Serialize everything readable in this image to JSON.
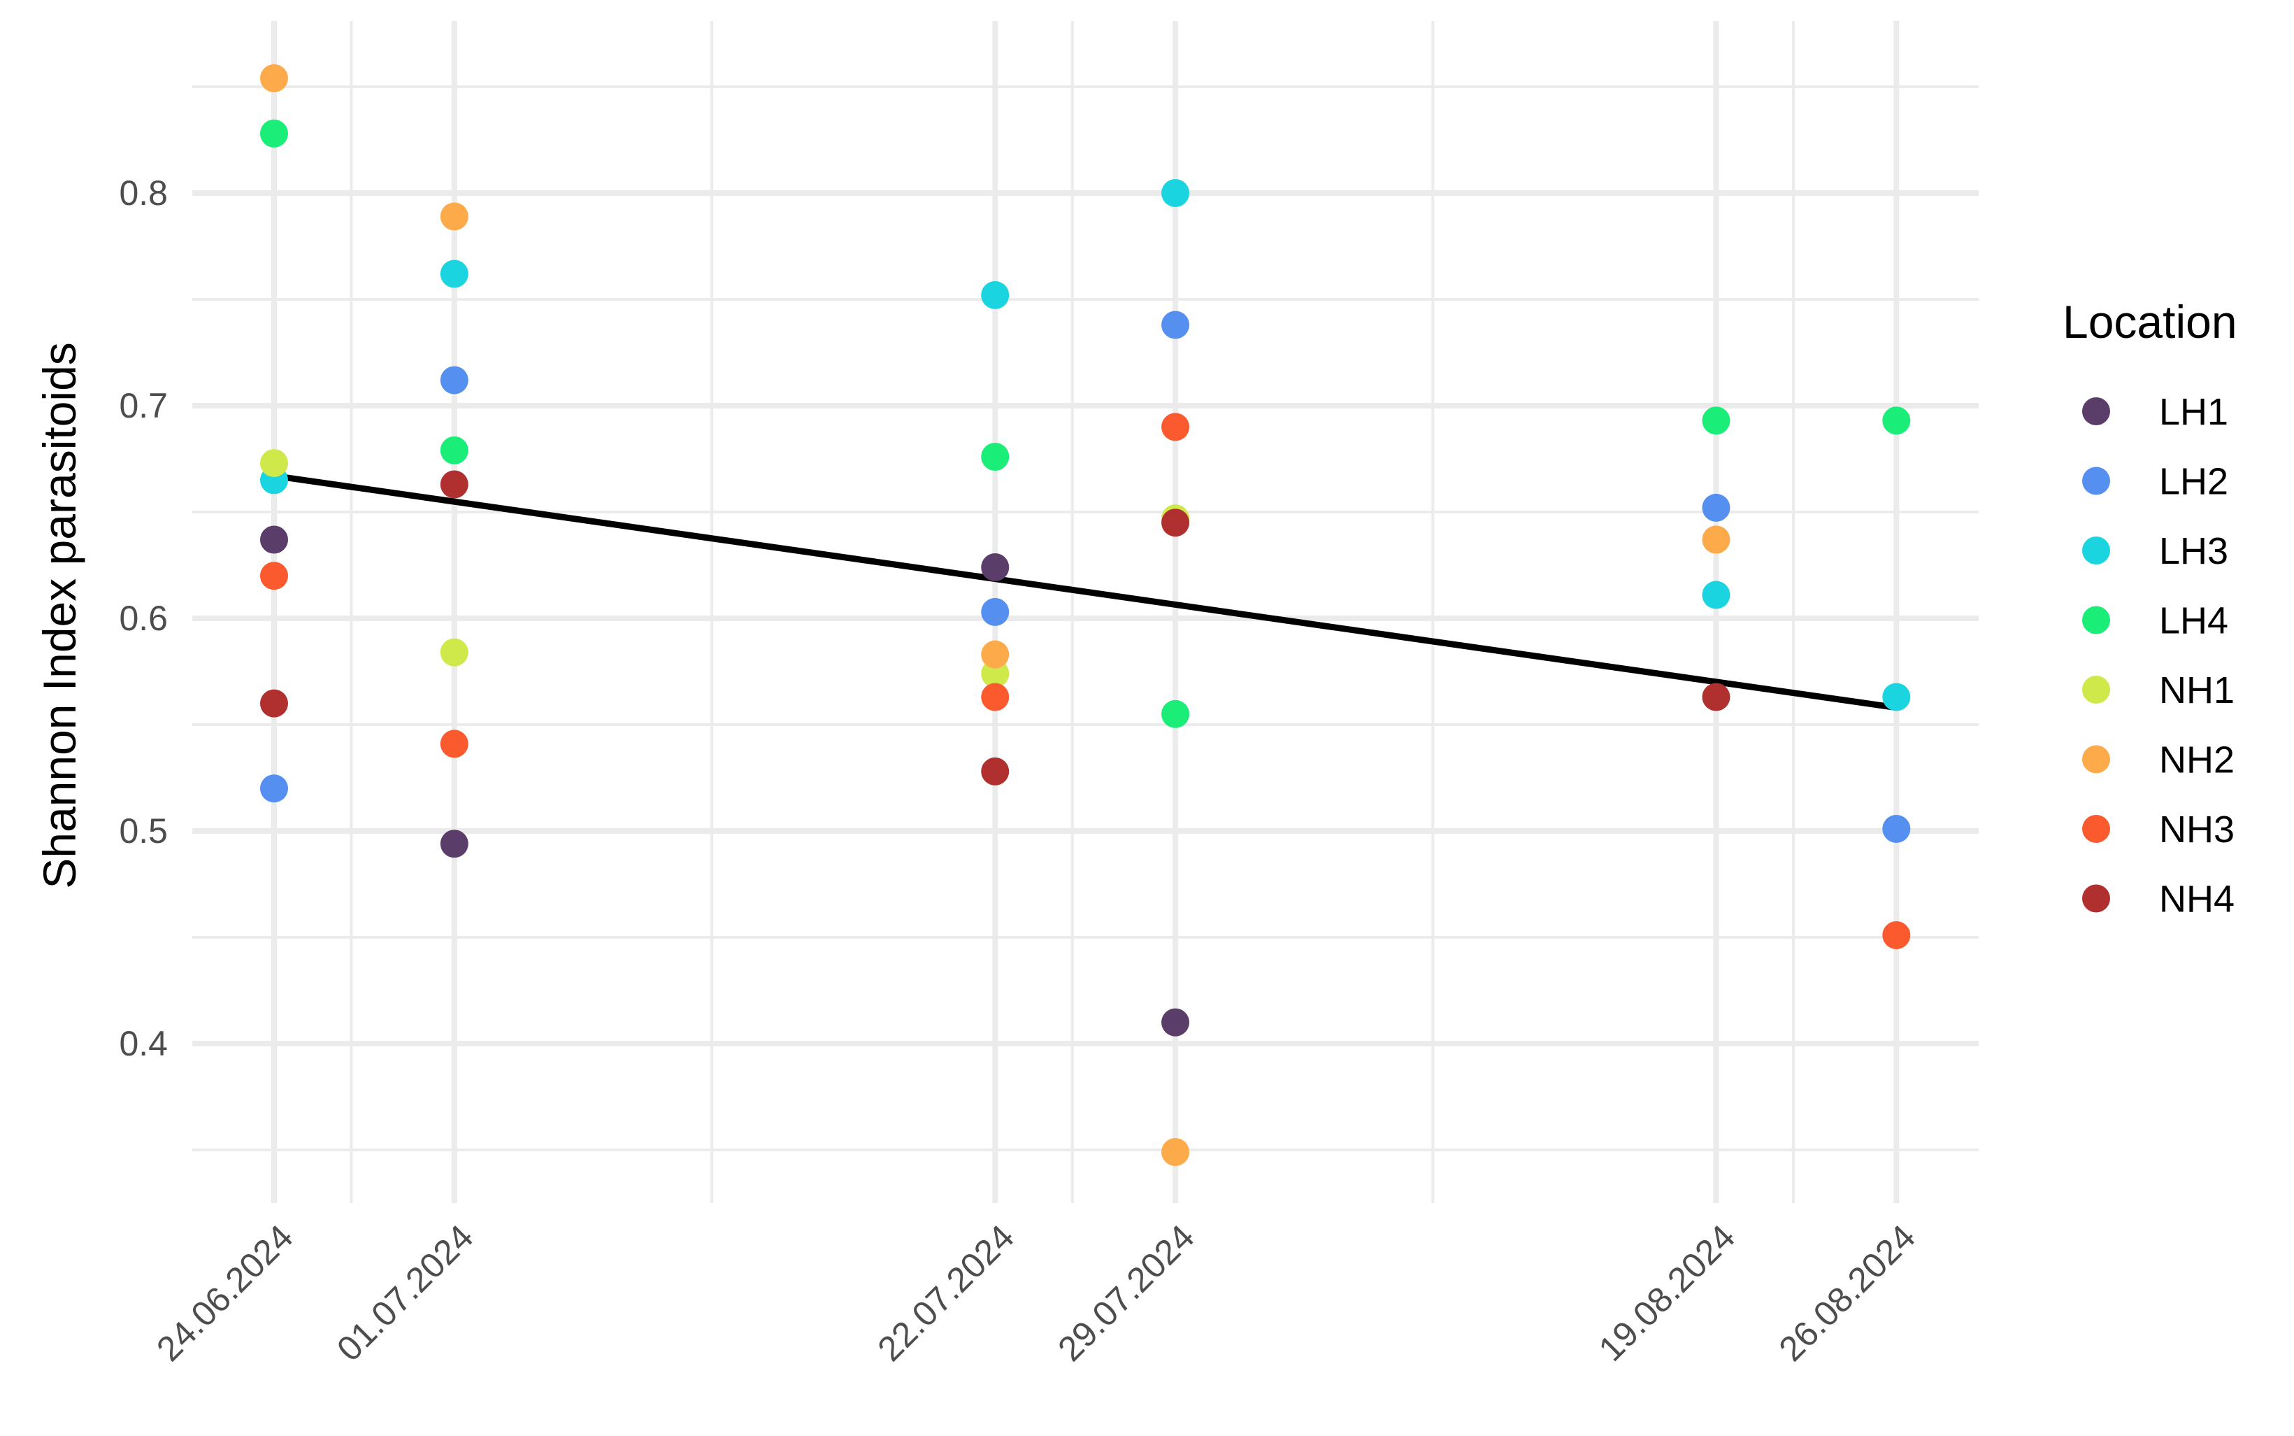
{
  "chart_data": {
    "type": "scatter",
    "ylabel": "Shannon Index parasitoids",
    "xlabel": "",
    "ylim": [
      0.327,
      0.875
    ],
    "y_ticks": [
      0.4,
      0.5,
      0.6,
      0.7,
      0.8
    ],
    "y_tick_labels": [
      "0.4",
      "0.5",
      "0.6",
      "0.7",
      "0.8"
    ],
    "x_tick_labels": [
      "24.06.2024",
      "01.07.2024",
      "22.07.2024",
      "29.07.2024",
      "19.08.2024",
      "26.08.2024"
    ],
    "x_tick_dates": [
      "2024-06-24",
      "2024-07-01",
      "2024-07-22",
      "2024-07-29",
      "2024-08-19",
      "2024-08-26"
    ],
    "x_grid_minor_dates": [
      "2024-06-27",
      "2024-07-11",
      "2024-07-25",
      "2024-08-08",
      "2024-08-22"
    ],
    "grid": true,
    "legend": {
      "title": "Location",
      "position": "right"
    },
    "series": [
      {
        "name": "LH1",
        "color": "#5a3d68",
        "points": [
          {
            "x": "2024-06-24",
            "y": 0.637
          },
          {
            "x": "2024-07-01",
            "y": 0.494
          },
          {
            "x": "2024-07-22",
            "y": 0.624
          },
          {
            "x": "2024-07-29",
            "y": 0.41
          }
        ]
      },
      {
        "name": "LH2",
        "color": "#5590f0",
        "points": [
          {
            "x": "2024-06-24",
            "y": 0.52
          },
          {
            "x": "2024-07-01",
            "y": 0.712
          },
          {
            "x": "2024-07-22",
            "y": 0.603
          },
          {
            "x": "2024-07-29",
            "y": 0.738
          },
          {
            "x": "2024-08-19",
            "y": 0.652
          },
          {
            "x": "2024-08-26",
            "y": 0.501
          }
        ]
      },
      {
        "name": "LH3",
        "color": "#1ad4e0",
        "points": [
          {
            "x": "2024-06-24",
            "y": 0.665
          },
          {
            "x": "2024-07-01",
            "y": 0.762
          },
          {
            "x": "2024-07-22",
            "y": 0.752
          },
          {
            "x": "2024-07-29",
            "y": 0.8
          },
          {
            "x": "2024-08-19",
            "y": 0.611
          },
          {
            "x": "2024-08-26",
            "y": 0.563
          }
        ]
      },
      {
        "name": "LH4",
        "color": "#1aee78",
        "points": [
          {
            "x": "2024-06-24",
            "y": 0.828
          },
          {
            "x": "2024-07-01",
            "y": 0.679
          },
          {
            "x": "2024-07-22",
            "y": 0.676
          },
          {
            "x": "2024-07-29",
            "y": 0.555
          },
          {
            "x": "2024-08-19",
            "y": 0.693
          },
          {
            "x": "2024-08-26",
            "y": 0.693
          }
        ]
      },
      {
        "name": "NH1",
        "color": "#cfe84a",
        "points": [
          {
            "x": "2024-06-24",
            "y": 0.673
          },
          {
            "x": "2024-07-01",
            "y": 0.584
          },
          {
            "x": "2024-07-22",
            "y": 0.574
          },
          {
            "x": "2024-07-29",
            "y": 0.647
          }
        ]
      },
      {
        "name": "NH2",
        "color": "#fcaa4a",
        "points": [
          {
            "x": "2024-06-24",
            "y": 0.854
          },
          {
            "x": "2024-07-01",
            "y": 0.789
          },
          {
            "x": "2024-07-22",
            "y": 0.583
          },
          {
            "x": "2024-07-29",
            "y": 0.349
          },
          {
            "x": "2024-08-19",
            "y": 0.637
          }
        ]
      },
      {
        "name": "NH3",
        "color": "#fb5a2e",
        "points": [
          {
            "x": "2024-06-24",
            "y": 0.62
          },
          {
            "x": "2024-07-01",
            "y": 0.541
          },
          {
            "x": "2024-07-22",
            "y": 0.563
          },
          {
            "x": "2024-07-29",
            "y": 0.69
          },
          {
            "x": "2024-08-26",
            "y": 0.451
          }
        ]
      },
      {
        "name": "NH4",
        "color": "#b03030",
        "points": [
          {
            "x": "2024-06-24",
            "y": 0.56
          },
          {
            "x": "2024-07-01",
            "y": 0.663
          },
          {
            "x": "2024-07-22",
            "y": 0.528
          },
          {
            "x": "2024-07-29",
            "y": 0.645
          },
          {
            "x": "2024-08-19",
            "y": 0.563
          }
        ]
      }
    ],
    "trend_line": {
      "type": "linear",
      "color": "#000000",
      "start": {
        "x": "2024-06-24",
        "y": 0.667
      },
      "end": {
        "x": "2024-08-26",
        "y": 0.558
      }
    }
  }
}
